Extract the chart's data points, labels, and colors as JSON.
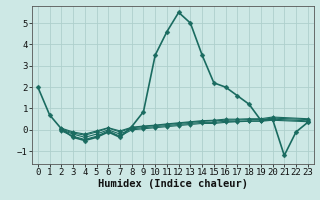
{
  "xlabel": "Humidex (Indice chaleur)",
  "bg_color": "#cde8e5",
  "grid_color": "#aed0cc",
  "line_color": "#1a6b60",
  "xlim": [
    -0.5,
    23.5
  ],
  "ylim": [
    -1.6,
    5.8
  ],
  "yticks": [
    -1,
    0,
    1,
    2,
    3,
    4,
    5
  ],
  "xticks": [
    0,
    1,
    2,
    3,
    4,
    5,
    6,
    7,
    8,
    9,
    10,
    11,
    12,
    13,
    14,
    15,
    16,
    17,
    18,
    19,
    20,
    21,
    22,
    23
  ],
  "series_main": [
    [
      0,
      2.0
    ],
    [
      1,
      0.7
    ],
    [
      2,
      0.05
    ],
    [
      3,
      -0.35
    ],
    [
      4,
      -0.5
    ],
    [
      5,
      -0.35
    ],
    [
      6,
      -0.1
    ],
    [
      7,
      -0.35
    ],
    [
      8,
      0.15
    ],
    [
      9,
      0.85
    ],
    [
      10,
      3.5
    ],
    [
      11,
      4.6
    ],
    [
      12,
      5.5
    ],
    [
      13,
      5.0
    ],
    [
      14,
      3.5
    ],
    [
      15,
      2.2
    ],
    [
      16,
      2.0
    ],
    [
      17,
      1.6
    ],
    [
      18,
      1.2
    ],
    [
      19,
      0.45
    ],
    [
      20,
      0.5
    ],
    [
      21,
      -1.2
    ],
    [
      22,
      -0.1
    ],
    [
      23,
      0.35
    ]
  ],
  "series_flat1": [
    [
      2,
      0.0
    ],
    [
      3,
      -0.2
    ],
    [
      4,
      -0.35
    ],
    [
      5,
      -0.2
    ],
    [
      6,
      0.0
    ],
    [
      7,
      -0.2
    ],
    [
      8,
      0.05
    ],
    [
      9,
      0.1
    ],
    [
      10,
      0.15
    ],
    [
      11,
      0.2
    ],
    [
      12,
      0.25
    ],
    [
      13,
      0.3
    ],
    [
      14,
      0.35
    ],
    [
      15,
      0.35
    ],
    [
      16,
      0.4
    ],
    [
      17,
      0.4
    ],
    [
      18,
      0.42
    ],
    [
      19,
      0.42
    ],
    [
      20,
      0.5
    ],
    [
      23,
      0.42
    ]
  ],
  "series_flat2": [
    [
      2,
      -0.05
    ],
    [
      3,
      -0.3
    ],
    [
      4,
      -0.45
    ],
    [
      5,
      -0.3
    ],
    [
      6,
      -0.05
    ],
    [
      7,
      -0.3
    ],
    [
      8,
      0.0
    ],
    [
      9,
      0.05
    ],
    [
      10,
      0.1
    ],
    [
      11,
      0.15
    ],
    [
      12,
      0.2
    ],
    [
      13,
      0.25
    ],
    [
      14,
      0.3
    ],
    [
      15,
      0.3
    ],
    [
      16,
      0.35
    ],
    [
      17,
      0.38
    ],
    [
      18,
      0.4
    ],
    [
      19,
      0.4
    ],
    [
      20,
      0.45
    ],
    [
      23,
      0.38
    ]
  ],
  "series_flat3": [
    [
      2,
      0.05
    ],
    [
      3,
      -0.15
    ],
    [
      4,
      -0.25
    ],
    [
      5,
      -0.1
    ],
    [
      6,
      0.08
    ],
    [
      7,
      -0.1
    ],
    [
      8,
      0.1
    ],
    [
      9,
      0.15
    ],
    [
      10,
      0.2
    ],
    [
      11,
      0.25
    ],
    [
      12,
      0.3
    ],
    [
      13,
      0.35
    ],
    [
      14,
      0.4
    ],
    [
      15,
      0.42
    ],
    [
      16,
      0.45
    ],
    [
      17,
      0.46
    ],
    [
      18,
      0.48
    ],
    [
      19,
      0.48
    ],
    [
      20,
      0.55
    ],
    [
      23,
      0.48
    ]
  ],
  "series_flat4": [
    [
      2,
      0.08
    ],
    [
      3,
      -0.1
    ],
    [
      4,
      -0.2
    ],
    [
      5,
      -0.05
    ],
    [
      6,
      0.1
    ],
    [
      7,
      -0.05
    ],
    [
      8,
      0.12
    ],
    [
      9,
      0.18
    ],
    [
      10,
      0.22
    ],
    [
      11,
      0.28
    ],
    [
      12,
      0.33
    ],
    [
      13,
      0.38
    ],
    [
      14,
      0.43
    ],
    [
      15,
      0.45
    ],
    [
      16,
      0.5
    ],
    [
      17,
      0.5
    ],
    [
      18,
      0.52
    ],
    [
      19,
      0.52
    ],
    [
      20,
      0.6
    ],
    [
      23,
      0.52
    ]
  ],
  "marker_size": 2.5,
  "line_width": 1.0
}
